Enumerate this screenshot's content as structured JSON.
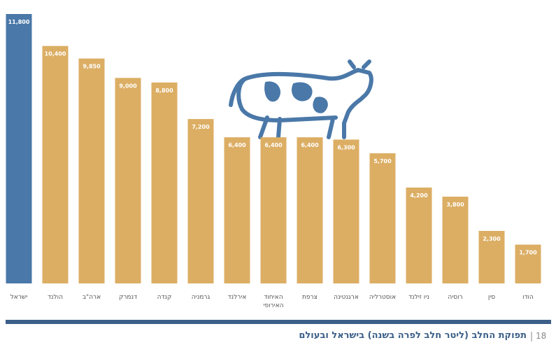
{
  "chart_data": {
    "type": "bar",
    "title": "תפוקת החלב (ליטר חלב לפרה בשנה) בישראל ובעולם",
    "page_number": 18,
    "categories": [
      "ישראל",
      "הולנד",
      "ארה\"ב",
      "דנמרק",
      "קנדה",
      "גרמניה",
      "אירלנד",
      "האיחוד האירופי",
      "צרפת",
      "ארגנטינה",
      "אוסטרליה",
      "ניו זילנד",
      "רוסיה",
      "סין",
      "הודו"
    ],
    "values": [
      11800,
      10400,
      9850,
      9000,
      8800,
      7200,
      6400,
      6400,
      6400,
      6300,
      5700,
      4200,
      3800,
      2300,
      1700
    ],
    "value_labels": [
      "11,800",
      "10,400",
      "9,850",
      "9,000",
      "8,800",
      "7,200",
      "6,400",
      "6,400",
      "6,400",
      "6,300",
      "5,700",
      "4,200",
      "3,800",
      "2,300",
      "1,700"
    ],
    "colors": [
      "#4a78a8",
      "#dcae64",
      "#dcae64",
      "#dcae64",
      "#dcae64",
      "#dcae64",
      "#dcae64",
      "#dcae64",
      "#dcae64",
      "#dcae64",
      "#dcae64",
      "#dcae64",
      "#dcae64",
      "#dcae64",
      "#dcae64"
    ]
  }
}
